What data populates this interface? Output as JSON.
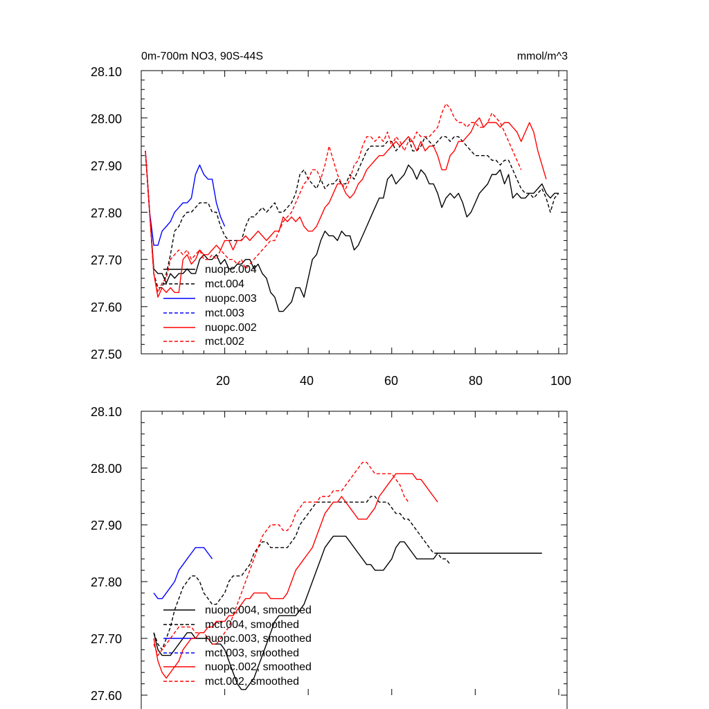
{
  "chart_data": [
    {
      "type": "line",
      "title_left": "0m-700m NO3, 90S-44S",
      "title_right": "mmol/m^3",
      "xlim": [
        0,
        102
      ],
      "ylim": [
        27.5,
        28.1
      ],
      "yticks": [
        "27.50",
        "27.60",
        "27.70",
        "27.80",
        "27.90",
        "28.00",
        "28.10"
      ],
      "xticks": [
        "20",
        "40",
        "60",
        "80",
        "100"
      ],
      "legend": [
        "nuopc.004",
        "mct.004",
        "nuopc.003",
        "mct.003",
        "nuopc.002",
        "mct.002"
      ],
      "series": [
        {
          "name": "nuopc.004",
          "color": "#000000",
          "dash": false,
          "x_start": 1,
          "values": [
            27.93,
            27.8,
            27.68,
            27.67,
            27.67,
            27.65,
            27.67,
            27.66,
            27.67,
            27.67,
            27.68,
            27.67,
            27.67,
            27.7,
            27.71,
            27.7,
            27.7,
            27.71,
            27.69,
            27.7,
            27.68,
            27.68,
            27.69,
            27.69,
            27.7,
            27.7,
            27.68,
            27.69,
            27.67,
            27.66,
            27.63,
            27.62,
            27.59,
            27.59,
            27.6,
            27.61,
            27.64,
            27.64,
            27.62,
            27.66,
            27.7,
            27.71,
            27.74,
            27.76,
            27.75,
            27.75,
            27.74,
            27.76,
            27.75,
            27.75,
            27.72,
            27.73,
            27.75,
            27.77,
            27.79,
            27.81,
            27.83,
            27.83,
            27.87,
            27.88,
            27.86,
            27.87,
            27.88,
            27.9,
            27.89,
            27.87,
            27.89,
            27.88,
            27.86,
            27.86,
            27.84,
            27.81,
            27.83,
            27.84,
            27.83,
            27.84,
            27.82,
            27.79,
            27.8,
            27.82,
            27.84,
            27.85,
            27.86,
            27.88,
            27.88,
            27.89,
            27.86,
            27.88,
            27.83,
            27.84,
            27.83,
            27.83,
            27.84,
            27.84,
            27.85,
            27.86,
            27.84,
            27.83,
            27.84,
            27.84
          ]
        },
        {
          "name": "mct.004",
          "color": "#000000",
          "dash": true,
          "x_start": 1,
          "values": [
            27.93,
            27.8,
            27.67,
            27.64,
            27.64,
            27.67,
            27.71,
            27.76,
            27.77,
            27.79,
            27.8,
            27.8,
            27.81,
            27.82,
            27.82,
            27.82,
            27.8,
            27.8,
            27.77,
            27.75,
            27.74,
            27.74,
            27.74,
            27.74,
            27.77,
            27.79,
            27.79,
            27.8,
            27.81,
            27.8,
            27.81,
            27.82,
            27.8,
            27.8,
            27.81,
            27.82,
            27.84,
            27.88,
            27.89,
            27.87,
            27.86,
            27.85,
            27.87,
            27.85,
            27.86,
            27.86,
            27.87,
            27.86,
            27.86,
            27.88,
            27.87,
            27.89,
            27.91,
            27.93,
            27.94,
            27.94,
            27.94,
            27.94,
            27.95,
            27.95,
            27.93,
            27.94,
            27.95,
            27.96,
            27.93,
            27.93,
            27.94,
            27.96,
            27.95,
            27.94,
            27.95,
            27.96,
            27.96,
            27.95,
            27.96,
            27.96,
            27.95,
            27.94,
            27.93,
            27.92,
            27.92,
            27.92,
            27.92,
            27.91,
            27.91,
            27.9,
            27.91,
            27.91,
            27.89,
            27.87,
            27.85,
            27.84,
            27.84,
            27.83,
            27.84,
            27.85,
            27.83,
            27.8,
            27.83,
            27.84
          ]
        },
        {
          "name": "nuopc.003",
          "color": "#0000ff",
          "dash": false,
          "x_start": 1,
          "values": [
            27.93,
            27.8,
            27.73,
            27.73,
            27.76,
            27.77,
            27.78,
            27.8,
            27.81,
            27.82,
            27.82,
            27.83,
            27.88,
            27.9,
            27.88,
            27.87,
            27.87,
            27.82,
            27.79,
            27.77
          ]
        },
        {
          "name": "mct.003",
          "color": "#0000ff",
          "dash": true,
          "x_start": 1,
          "values": []
        },
        {
          "name": "nuopc.002",
          "color": "#ff0000",
          "dash": false,
          "x_start": 1,
          "values": [
            27.93,
            27.8,
            27.67,
            27.62,
            27.64,
            27.63,
            27.64,
            27.63,
            27.63,
            27.7,
            27.71,
            27.69,
            27.7,
            27.72,
            27.71,
            27.71,
            27.72,
            27.73,
            27.72,
            27.74,
            27.74,
            27.72,
            27.74,
            27.74,
            27.75,
            27.74,
            27.75,
            27.76,
            27.75,
            27.74,
            27.75,
            27.76,
            27.76,
            27.79,
            27.78,
            27.79,
            27.78,
            27.79,
            27.77,
            27.76,
            27.76,
            27.77,
            27.79,
            27.81,
            27.82,
            27.84,
            27.86,
            27.86,
            27.84,
            27.83,
            27.84,
            27.86,
            27.87,
            27.89,
            27.9,
            27.91,
            27.92,
            27.92,
            27.93,
            27.94,
            27.95,
            27.94,
            27.95,
            27.96,
            27.95,
            27.93,
            27.95,
            27.93,
            27.94,
            27.94,
            27.92,
            27.89,
            27.89,
            27.92,
            27.93,
            27.95,
            27.95,
            27.96,
            27.97,
            27.99,
            28.0,
            27.98,
            27.99,
            27.99,
            27.99,
            27.98,
            27.99,
            27.99,
            27.98,
            27.97,
            27.95,
            27.97,
            27.99,
            27.97,
            27.93,
            27.9,
            27.87
          ]
        },
        {
          "name": "mct.002",
          "color": "#ff0000",
          "dash": true,
          "x_start": 1,
          "values": [
            27.93,
            27.8,
            27.67,
            27.63,
            27.65,
            27.66,
            27.7,
            27.71,
            27.72,
            27.71,
            27.72,
            27.7,
            27.71,
            27.72,
            27.7,
            27.7,
            27.71,
            27.7,
            27.72,
            27.71,
            27.7,
            27.7,
            27.69,
            27.7,
            27.68,
            27.69,
            27.7,
            27.71,
            27.72,
            27.73,
            27.74,
            27.74,
            27.76,
            27.78,
            27.79,
            27.8,
            27.82,
            27.84,
            27.86,
            27.87,
            27.89,
            27.89,
            27.87,
            27.9,
            27.94,
            27.91,
            27.88,
            27.86,
            27.85,
            27.87,
            27.9,
            27.91,
            27.94,
            27.96,
            27.96,
            27.95,
            27.96,
            27.95,
            27.97,
            27.94,
            27.96,
            27.95,
            27.93,
            27.95,
            27.95,
            27.97,
            27.96,
            27.96,
            27.96,
            27.97,
            27.98,
            28.01,
            28.03,
            28.02,
            28.0,
            27.99,
            27.99,
            27.98,
            27.99,
            27.99,
            27.98,
            27.98,
            27.99,
            28.01,
            28.0,
            27.99,
            27.97,
            27.95,
            27.93,
            27.91,
            27.89
          ]
        }
      ]
    },
    {
      "type": "line",
      "xlim": [
        0,
        102
      ],
      "ylim": [
        27.6,
        28.1
      ],
      "yticks": [
        "27.60",
        "27.70",
        "27.80",
        "27.90",
        "28.00",
        "28.10"
      ],
      "legend": [
        "nuopc.004, smoothed",
        "mct.004, smoothed",
        "nuopc.003, smoothed",
        "mct.003, smoothed",
        "nuopc.002, smoothed",
        "mct.002, smoothed"
      ],
      "series": [
        {
          "name": "nuopc.004, smoothed",
          "color": "#000000",
          "dash": false,
          "x_start": 3,
          "values": [
            27.71,
            27.68,
            27.67,
            27.67,
            27.67,
            27.68,
            27.69,
            27.7,
            27.71,
            27.71,
            27.7,
            27.7,
            27.7,
            27.7,
            27.69,
            27.69,
            27.69,
            27.68,
            27.66,
            27.64,
            27.62,
            27.61,
            27.61,
            27.62,
            27.63,
            27.65,
            27.67,
            27.69,
            27.71,
            27.73,
            27.74,
            27.74,
            27.74,
            27.74,
            27.74,
            27.75,
            27.76,
            27.78,
            27.8,
            27.82,
            27.84,
            27.86,
            27.87,
            27.88,
            27.88,
            27.88,
            27.88,
            27.87,
            27.86,
            27.85,
            27.84,
            27.83,
            27.83,
            27.82,
            27.82,
            27.82,
            27.83,
            27.84,
            27.86,
            27.87,
            27.87,
            27.86,
            27.85,
            27.84,
            27.84,
            27.84,
            27.84,
            27.84,
            27.85,
            27.85,
            27.85,
            27.85,
            27.85,
            27.85,
            27.85,
            27.85,
            27.85,
            27.85,
            27.85,
            27.85,
            27.85,
            27.85,
            27.85,
            27.85,
            27.85,
            27.85,
            27.85,
            27.85,
            27.85,
            27.85,
            27.85,
            27.85,
            27.85,
            27.85
          ]
        },
        {
          "name": "mct.004, smoothed",
          "color": "#000000",
          "dash": true,
          "x_start": 3,
          "values": [
            27.71,
            27.69,
            27.68,
            27.7,
            27.72,
            27.75,
            27.77,
            27.79,
            27.8,
            27.81,
            27.81,
            27.8,
            27.78,
            27.77,
            27.76,
            27.76,
            27.77,
            27.78,
            27.8,
            27.81,
            27.81,
            27.81,
            27.82,
            27.83,
            27.85,
            27.86,
            27.87,
            27.87,
            27.86,
            27.86,
            27.86,
            27.86,
            27.86,
            27.87,
            27.88,
            27.9,
            27.91,
            27.92,
            27.93,
            27.94,
            27.94,
            27.94,
            27.94,
            27.94,
            27.94,
            27.94,
            27.94,
            27.94,
            27.94,
            27.94,
            27.94,
            27.94,
            27.95,
            27.95,
            27.94,
            27.94,
            27.94,
            27.93,
            27.92,
            27.92,
            27.91,
            27.91,
            27.9,
            27.89,
            27.88,
            27.87,
            27.86,
            27.85,
            27.85,
            27.84,
            27.84,
            27.83
          ]
        },
        {
          "name": "nuopc.003, smoothed",
          "color": "#0000ff",
          "dash": false,
          "x_start": 3,
          "values": [
            27.78,
            27.77,
            27.77,
            27.78,
            27.79,
            27.8,
            27.82,
            27.83,
            27.84,
            27.85,
            27.86,
            27.86,
            27.86,
            27.85,
            27.84
          ]
        },
        {
          "name": "mct.003, smoothed",
          "color": "#0000ff",
          "dash": true,
          "x_start": 3,
          "values": []
        },
        {
          "name": "nuopc.002, smoothed",
          "color": "#ff0000",
          "dash": false,
          "x_start": 3,
          "values": [
            27.7,
            27.66,
            27.64,
            27.63,
            27.64,
            27.65,
            27.66,
            27.68,
            27.69,
            27.7,
            27.7,
            27.71,
            27.71,
            27.72,
            27.72,
            27.73,
            27.73,
            27.73,
            27.74,
            27.74,
            27.75,
            27.76,
            27.77,
            27.77,
            27.78,
            27.78,
            27.78,
            27.78,
            27.77,
            27.77,
            27.77,
            27.77,
            27.78,
            27.8,
            27.82,
            27.83,
            27.84,
            27.85,
            27.86,
            27.88,
            27.9,
            27.92,
            27.93,
            27.94,
            27.94,
            27.95,
            27.94,
            27.93,
            27.92,
            27.91,
            27.91,
            27.91,
            27.92,
            27.93,
            27.95,
            27.96,
            27.97,
            27.98,
            27.99,
            27.99,
            27.99,
            27.99,
            27.99,
            27.98,
            27.98,
            27.97,
            27.96,
            27.95,
            27.94
          ]
        },
        {
          "name": "mct.002, smoothed",
          "color": "#ff0000",
          "dash": true,
          "x_start": 3,
          "values": [
            27.69,
            27.67,
            27.68,
            27.69,
            27.7,
            27.71,
            27.72,
            27.72,
            27.72,
            27.72,
            27.71,
            27.71,
            27.71,
            27.7,
            27.69,
            27.69,
            27.7,
            27.71,
            27.72,
            27.74,
            27.76,
            27.78,
            27.8,
            27.82,
            27.84,
            27.86,
            27.88,
            27.89,
            27.9,
            27.9,
            27.9,
            27.89,
            27.89,
            27.9,
            27.92,
            27.93,
            27.94,
            27.94,
            27.94,
            27.94,
            27.95,
            27.95,
            27.95,
            27.96,
            27.96,
            27.96,
            27.97,
            27.98,
            27.99,
            28.0,
            28.01,
            28.01,
            28.0,
            27.99,
            27.99,
            27.99,
            27.99,
            27.99,
            27.98,
            27.97,
            27.95,
            27.94
          ]
        }
      ]
    }
  ]
}
